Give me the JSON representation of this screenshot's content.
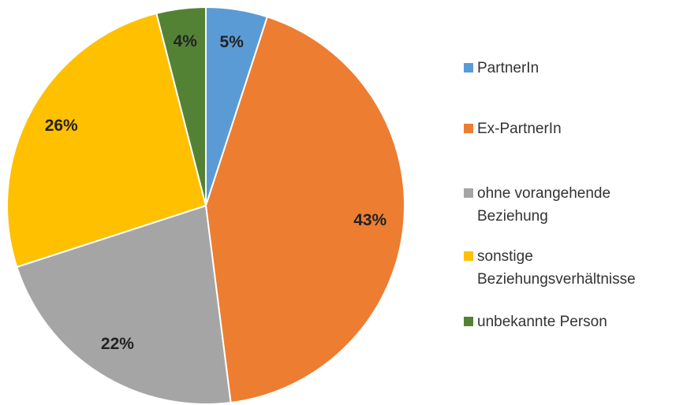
{
  "chart_data": {
    "type": "pie",
    "categories": [
      "PartnerIn",
      "Ex-PartnerIn",
      "ohne vorangehende Beziehung",
      "sonstige Beziehungsverhältnisse",
      "unbekannte Person"
    ],
    "values": [
      5,
      43,
      22,
      26,
      4
    ],
    "value_labels": [
      "5%",
      "43%",
      "22%",
      "26%",
      "4%"
    ],
    "colors": [
      "#5b9bd5",
      "#ed7d31",
      "#a5a5a5",
      "#ffc000",
      "#548235"
    ],
    "legend": "right"
  }
}
